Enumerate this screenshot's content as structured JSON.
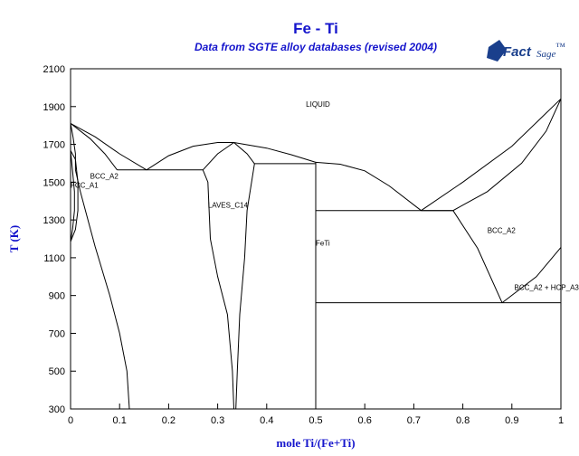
{
  "title": "Fe - Ti",
  "subtitle": "Data from SGTE alloy databases (revised 2004)",
  "logo": {
    "fact": "Fact",
    "sage": "Sage",
    "mark": "™",
    "icon": "factsage-logo-icon",
    "color": "#1a3f8c"
  },
  "colors": {
    "title": "#1515cc",
    "lines": "#000000",
    "background": "#ffffff"
  },
  "chart_data": {
    "type": "phase-diagram",
    "xlabel": "mole Ti/(Fe+Ti)",
    "ylabel": "T (K)",
    "xlim": [
      0,
      1
    ],
    "ylim": [
      300,
      2100
    ],
    "x_ticks": [
      "0",
      "0.1",
      "0.2",
      "0.3",
      "0.4",
      "0.5",
      "0.6",
      "0.7",
      "0.8",
      "0.9",
      "1"
    ],
    "y_ticks": [
      "300",
      "500",
      "700",
      "900",
      "1100",
      "1300",
      "1500",
      "1700",
      "1900",
      "2100"
    ],
    "regions": [
      {
        "label": "LIQUID",
        "x": 0.48,
        "y": 1900
      },
      {
        "label": "BCC_A2",
        "x": 0.04,
        "y": 1518
      },
      {
        "label": "FCC_A1",
        "x": 0.0,
        "y": 1470
      },
      {
        "label": "LAVES_C14",
        "x": 0.28,
        "y": 1365
      },
      {
        "label": "FeTi",
        "x": 0.5,
        "y": 1165
      },
      {
        "label": "BCC_A2",
        "x": 0.85,
        "y": 1230
      },
      {
        "label": "BCC_A2 + HCP_A3",
        "x": 0.905,
        "y": 930
      }
    ],
    "lines": [
      {
        "name": "liquidus-fe-left",
        "points": [
          [
            0,
            1811
          ],
          [
            0.05,
            1740
          ],
          [
            0.1,
            1650
          ],
          [
            0.155,
            1565
          ]
        ]
      },
      {
        "name": "liquidus-laves-left",
        "points": [
          [
            0.155,
            1565
          ],
          [
            0.2,
            1640
          ],
          [
            0.25,
            1690
          ],
          [
            0.3,
            1710
          ],
          [
            0.333,
            1710
          ]
        ]
      },
      {
        "name": "liquidus-laves-right",
        "points": [
          [
            0.333,
            1710
          ],
          [
            0.4,
            1680
          ],
          [
            0.45,
            1645
          ],
          [
            0.5,
            1605
          ]
        ]
      },
      {
        "name": "liquidus-mid",
        "points": [
          [
            0.5,
            1605
          ],
          [
            0.55,
            1595
          ],
          [
            0.6,
            1560
          ],
          [
            0.65,
            1480
          ],
          [
            0.715,
            1350
          ]
        ]
      },
      {
        "name": "liquidus-ti",
        "points": [
          [
            0.715,
            1350
          ],
          [
            0.8,
            1500
          ],
          [
            0.9,
            1690
          ],
          [
            1,
            1941
          ]
        ]
      },
      {
        "name": "solidus-ti-bcc",
        "points": [
          [
            0.715,
            1350
          ],
          [
            0.78,
            1350
          ],
          [
            0.85,
            1450
          ],
          [
            0.92,
            1600
          ],
          [
            0.97,
            1770
          ],
          [
            1,
            1941
          ]
        ]
      },
      {
        "name": "solidus-fe-bcc",
        "points": [
          [
            0,
            1811
          ],
          [
            0.04,
            1730
          ],
          [
            0.07,
            1650
          ],
          [
            0.095,
            1565
          ]
        ]
      },
      {
        "name": "bcc-fe-boundary",
        "points": [
          [
            0,
            1811
          ],
          [
            0.005,
            1740
          ],
          [
            0.01,
            1650
          ],
          [
            0.01,
            1565
          ],
          [
            0.02,
            1450
          ],
          [
            0.05,
            1160
          ],
          [
            0.08,
            900
          ],
          [
            0.1,
            700
          ],
          [
            0.115,
            500
          ],
          [
            0.12,
            300
          ]
        ]
      },
      {
        "name": "eutectic-fe-laves",
        "points": [
          [
            0.095,
            1565
          ],
          [
            0.27,
            1565
          ]
        ]
      },
      {
        "name": "laves-left-boundary",
        "points": [
          [
            0.27,
            1565
          ],
          [
            0.28,
            1500
          ],
          [
            0.285,
            1200
          ],
          [
            0.3,
            1000
          ],
          [
            0.32,
            800
          ],
          [
            0.33,
            500
          ],
          [
            0.333,
            300
          ]
        ]
      },
      {
        "name": "laves-peak-left",
        "points": [
          [
            0.27,
            1565
          ],
          [
            0.3,
            1650
          ],
          [
            0.333,
            1710
          ]
        ]
      },
      {
        "name": "laves-peak-right",
        "points": [
          [
            0.333,
            1710
          ],
          [
            0.36,
            1650
          ],
          [
            0.375,
            1598
          ]
        ]
      },
      {
        "name": "laves-right-boundary",
        "points": [
          [
            0.375,
            1598
          ],
          [
            0.36,
            1350
          ],
          [
            0.355,
            1100
          ],
          [
            0.345,
            800
          ],
          [
            0.34,
            500
          ],
          [
            0.337,
            300
          ]
        ]
      },
      {
        "name": "peritectic-fe-ti",
        "points": [
          [
            0.375,
            1598
          ],
          [
            0.5,
            1598
          ]
        ]
      },
      {
        "name": "feti-line",
        "points": [
          [
            0.5,
            300
          ],
          [
            0.5,
            1605
          ]
        ]
      },
      {
        "name": "eutectic-feti-bcc",
        "points": [
          [
            0.5,
            1350
          ],
          [
            0.78,
            1350
          ]
        ]
      },
      {
        "name": "bcc-solvus",
        "points": [
          [
            0.78,
            1350
          ],
          [
            0.83,
            1150
          ],
          [
            0.88,
            862
          ]
        ]
      },
      {
        "name": "eutectoid",
        "points": [
          [
            0.5,
            862
          ],
          [
            1,
            862
          ]
        ]
      },
      {
        "name": "hcp-boundary",
        "points": [
          [
            0.88,
            862
          ],
          [
            0.95,
            1000
          ],
          [
            1,
            1155
          ]
        ]
      },
      {
        "name": "gamma-loop",
        "points": [
          [
            0,
            1667
          ],
          [
            0.01,
            1620
          ],
          [
            0.015,
            1500
          ],
          [
            0.015,
            1350
          ],
          [
            0.01,
            1250
          ],
          [
            0,
            1185
          ]
        ]
      },
      {
        "name": "gamma-loop-inner",
        "points": [
          [
            0,
            1667
          ],
          [
            0.004,
            1560
          ],
          [
            0.008,
            1450
          ],
          [
            0.008,
            1350
          ],
          [
            0.004,
            1250
          ],
          [
            0,
            1185
          ]
        ]
      }
    ]
  }
}
